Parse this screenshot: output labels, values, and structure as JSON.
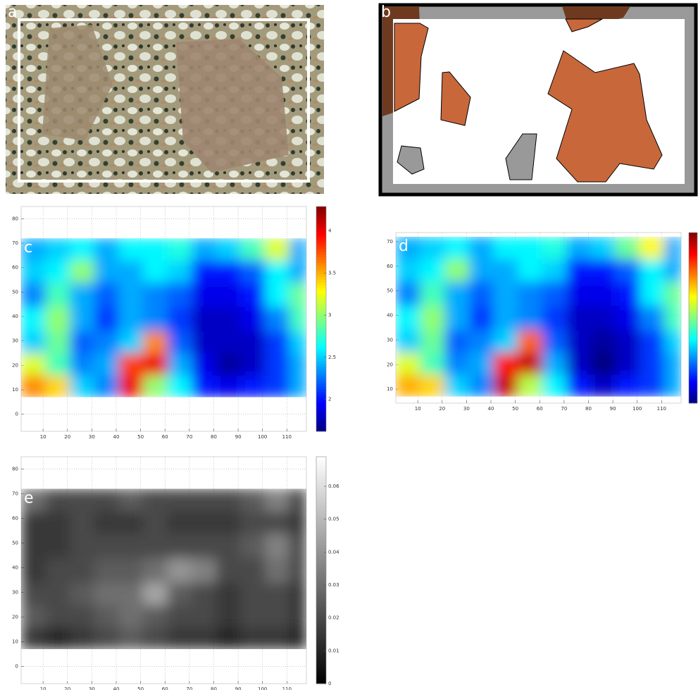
{
  "photo": {
    "label": "a"
  },
  "diagram": {
    "label": "b"
  },
  "chart_data": [
    {
      "type": "heatmap",
      "label": "c",
      "colormap": "jet",
      "grid": true,
      "xlim": [
        1,
        118
      ],
      "ylim": [
        -7,
        85
      ],
      "xticks": [
        10,
        20,
        30,
        40,
        50,
        60,
        70,
        80,
        90,
        100,
        110
      ],
      "yticks": [
        0,
        10,
        20,
        30,
        40,
        50,
        60,
        70,
        80
      ],
      "clim": [
        1.62,
        4.29
      ],
      "cticks": [
        2,
        2.5,
        3,
        3.5,
        4
      ],
      "xbins": [
        1,
        11,
        21,
        31,
        41,
        51,
        61,
        71,
        81,
        91,
        101,
        111,
        118
      ],
      "ybins": [
        7,
        16,
        25,
        34,
        44,
        54,
        63,
        72
      ],
      "z": [
        [
          3.6,
          3.4,
          2.5,
          2.3,
          4.0,
          3.0,
          2.6,
          2.0,
          1.9,
          2.0,
          2.1,
          2.4
        ],
        [
          3.2,
          2.8,
          2.3,
          2.4,
          3.8,
          4.0,
          2.4,
          1.9,
          1.7,
          1.8,
          2.1,
          2.4
        ],
        [
          2.5,
          2.9,
          2.2,
          2.3,
          2.5,
          3.6,
          2.2,
          1.8,
          1.8,
          1.8,
          2.1,
          2.5
        ],
        [
          2.6,
          3.0,
          2.4,
          2.1,
          2.4,
          2.3,
          2.1,
          1.8,
          1.8,
          1.9,
          2.3,
          2.8
        ],
        [
          2.3,
          2.8,
          2.4,
          2.2,
          2.4,
          2.3,
          2.2,
          1.9,
          1.9,
          2.0,
          2.6,
          2.9
        ],
        [
          2.5,
          2.6,
          3.0,
          2.4,
          2.4,
          2.6,
          2.5,
          2.0,
          2.0,
          2.2,
          2.6,
          2.4
        ],
        [
          2.4,
          2.5,
          2.6,
          2.4,
          2.6,
          2.6,
          2.7,
          2.4,
          2.5,
          2.8,
          3.2,
          2.4
        ]
      ]
    },
    {
      "type": "heatmap",
      "label": "d",
      "colormap": "jet",
      "grid": true,
      "xlim": [
        1,
        118
      ],
      "ylim": [
        4.3,
        73.7
      ],
      "xticks": [
        10,
        20,
        30,
        40,
        50,
        60,
        70,
        80,
        90,
        100,
        110
      ],
      "yticks": [
        10,
        20,
        30,
        40,
        50,
        60,
        70
      ],
      "clim": [
        1.62,
        4.29
      ],
      "xbins": [
        1,
        11,
        21,
        31,
        41,
        51,
        61,
        71,
        81,
        91,
        101,
        111,
        118
      ],
      "ybins": [
        7,
        16,
        25,
        34,
        44,
        54,
        63,
        72
      ],
      "z": [
        [
          3.5,
          3.4,
          2.5,
          2.3,
          4.1,
          3.1,
          2.6,
          2.0,
          1.8,
          2.0,
          2.1,
          2.4
        ],
        [
          3.2,
          2.8,
          2.3,
          2.4,
          3.9,
          4.1,
          2.4,
          1.8,
          1.6,
          1.8,
          2.1,
          2.4
        ],
        [
          2.5,
          2.9,
          2.2,
          2.3,
          2.5,
          3.7,
          2.2,
          1.8,
          1.7,
          1.8,
          2.1,
          2.5
        ],
        [
          2.6,
          3.0,
          2.4,
          2.1,
          2.4,
          2.3,
          2.1,
          1.8,
          1.8,
          1.9,
          2.3,
          2.8
        ],
        [
          2.3,
          2.8,
          2.4,
          2.2,
          2.4,
          2.3,
          2.2,
          1.9,
          1.9,
          2.0,
          2.6,
          2.9
        ],
        [
          2.5,
          2.6,
          3.0,
          2.4,
          2.4,
          2.6,
          2.5,
          2.0,
          2.0,
          2.2,
          2.6,
          2.4
        ],
        [
          2.4,
          2.5,
          2.6,
          2.4,
          2.6,
          2.6,
          2.7,
          2.4,
          2.5,
          2.9,
          3.3,
          2.4
        ]
      ]
    },
    {
      "type": "heatmap",
      "label": "e",
      "colormap": "gray",
      "grid": true,
      "xlim": [
        1,
        118
      ],
      "ylim": [
        -7,
        85
      ],
      "xticks": [
        10,
        20,
        30,
        40,
        50,
        60,
        70,
        80,
        90,
        100,
        110
      ],
      "yticks": [
        0,
        10,
        20,
        30,
        40,
        50,
        60,
        70,
        80
      ],
      "clim": [
        0,
        0.069
      ],
      "cticks": [
        0,
        0.01,
        0.02,
        0.03,
        0.04,
        0.05,
        0.06
      ],
      "xbins": [
        1,
        11,
        21,
        31,
        41,
        51,
        61,
        71,
        81,
        91,
        101,
        111,
        118
      ],
      "ybins": [
        7,
        16,
        25,
        34,
        44,
        54,
        63,
        72
      ],
      "z": [
        [
          0.015,
          0.01,
          0.015,
          0.02,
          0.025,
          0.02,
          0.015,
          0.015,
          0.01,
          0.015,
          0.015,
          0.01
        ],
        [
          0.025,
          0.02,
          0.02,
          0.025,
          0.03,
          0.025,
          0.02,
          0.02,
          0.015,
          0.02,
          0.02,
          0.015
        ],
        [
          0.02,
          0.02,
          0.025,
          0.03,
          0.03,
          0.045,
          0.025,
          0.02,
          0.015,
          0.02,
          0.02,
          0.015
        ],
        [
          0.015,
          0.02,
          0.02,
          0.025,
          0.025,
          0.03,
          0.04,
          0.035,
          0.02,
          0.02,
          0.03,
          0.02
        ],
        [
          0.015,
          0.015,
          0.02,
          0.02,
          0.02,
          0.02,
          0.02,
          0.02,
          0.02,
          0.025,
          0.035,
          0.02
        ],
        [
          0.015,
          0.015,
          0.02,
          0.015,
          0.015,
          0.02,
          0.015,
          0.015,
          0.015,
          0.02,
          0.02,
          0.015
        ],
        [
          0.03,
          0.02,
          0.02,
          0.02,
          0.025,
          0.02,
          0.02,
          0.02,
          0.02,
          0.025,
          0.035,
          0.02
        ]
      ]
    }
  ]
}
